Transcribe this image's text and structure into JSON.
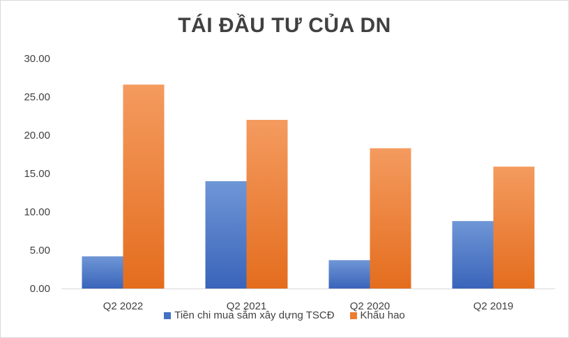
{
  "chart_data": {
    "type": "bar",
    "title": "TÁI ĐẦU TƯ CỦA DN",
    "categories": [
      "Q2 2022",
      "Q2 2021",
      "Q2 2020",
      "Q2 2019"
    ],
    "ylim": [
      0,
      30
    ],
    "yticks": [
      "0.00",
      "5.00",
      "10.00",
      "15.00",
      "20.00",
      "25.00",
      "30.00"
    ],
    "grid": false,
    "legend_position": "bottom",
    "series": [
      {
        "name": "Tiền chi mua sắm xây dựng TSCĐ",
        "color": "#4472C4",
        "values": [
          4.2,
          14.0,
          3.7,
          8.8
        ]
      },
      {
        "name": "Khấu hao",
        "color": "#ED7D31",
        "values": [
          26.6,
          22.0,
          18.3,
          15.9
        ]
      }
    ]
  }
}
